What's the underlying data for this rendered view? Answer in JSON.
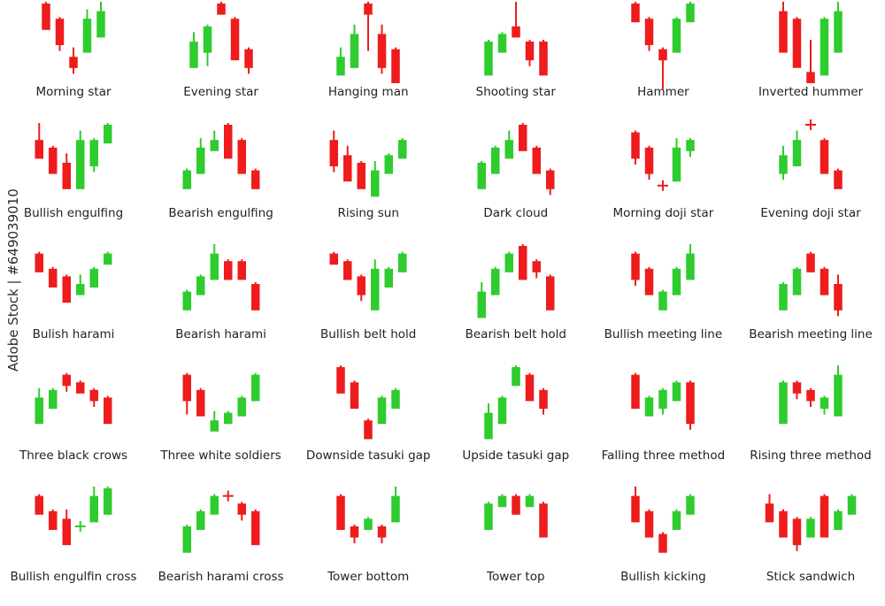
{
  "watermark": "Adobe Stock | #649039010",
  "colors": {
    "bull": "#2ecc2e",
    "bear": "#ee1c1c",
    "wick_bull": "#2ecc2e",
    "wick_bear": "#ee1c1c"
  },
  "patterns": [
    {
      "name": "Morning star",
      "candles": [
        [
          "r",
          0,
          3,
          0,
          3
        ],
        [
          "r",
          2,
          5,
          2,
          6
        ],
        [
          "r",
          7,
          8,
          6,
          9
        ],
        [
          "g",
          2,
          6,
          1,
          6
        ],
        [
          "g",
          1,
          4,
          0,
          4
        ]
      ]
    },
    {
      "name": "Evening star",
      "candles": [
        [
          "g",
          5,
          8,
          4,
          8
        ],
        [
          "g",
          3,
          6,
          3,
          8
        ],
        [
          "r",
          0,
          1,
          0,
          1
        ],
        [
          "r",
          2,
          7,
          2,
          7
        ],
        [
          "r",
          6,
          8,
          6,
          9
        ]
      ]
    },
    {
      "name": "Hanging man",
      "candles": [
        [
          "g",
          7,
          9,
          6,
          9
        ],
        [
          "g",
          4,
          8,
          3,
          8
        ],
        [
          "r",
          0,
          1,
          0,
          6
        ],
        [
          "r",
          4,
          8,
          3,
          9
        ],
        [
          "r",
          6,
          10,
          6,
          10
        ]
      ]
    },
    {
      "name": "Shooting star",
      "candles": [
        [
          "g",
          5,
          9,
          5,
          9
        ],
        [
          "g",
          4,
          6,
          4,
          6
        ],
        [
          "r",
          3,
          4,
          0,
          4
        ],
        [
          "r",
          5,
          7,
          5,
          8
        ],
        [
          "r",
          5,
          9,
          5,
          9
        ]
      ]
    },
    {
      "name": "Hammer",
      "candles": [
        [
          "r",
          0,
          2,
          0,
          2
        ],
        [
          "r",
          2,
          5,
          2,
          6
        ],
        [
          "r",
          6,
          7,
          6,
          11
        ],
        [
          "g",
          2,
          6,
          2,
          6
        ],
        [
          "g",
          0,
          2,
          0,
          2
        ]
      ]
    },
    {
      "name": "Inverted hummer",
      "candles": [
        [
          "r",
          1,
          6,
          0,
          6
        ],
        [
          "r",
          2,
          8,
          2,
          8
        ],
        [
          "r",
          9,
          10,
          5,
          10
        ],
        [
          "g",
          2,
          9,
          2,
          9
        ],
        [
          "g",
          1,
          6,
          0,
          6
        ]
      ]
    },
    {
      "name": "Bullish engulfing",
      "candles": [
        [
          "r",
          2,
          4,
          0,
          4
        ],
        [
          "r",
          3,
          6,
          3,
          6
        ],
        [
          "r",
          5,
          8,
          4,
          8
        ],
        [
          "g",
          2,
          8,
          1,
          8
        ],
        [
          "g",
          2,
          5,
          2,
          6
        ],
        [
          "g",
          0,
          2,
          0,
          2
        ]
      ]
    },
    {
      "name": "Bearish engulfing",
      "candles": [
        [
          "g",
          6,
          8,
          6,
          8
        ],
        [
          "g",
          3,
          6,
          2,
          6
        ],
        [
          "g",
          2,
          3,
          1,
          3
        ],
        [
          "r",
          0,
          4,
          0,
          4
        ],
        [
          "r",
          2,
          6,
          2,
          6
        ],
        [
          "r",
          6,
          8,
          6,
          8
        ]
      ]
    },
    {
      "name": "Rising sun",
      "candles": [
        [
          "r",
          2,
          5,
          1,
          6
        ],
        [
          "r",
          4,
          7,
          3,
          7
        ],
        [
          "r",
          5,
          8,
          5,
          8
        ],
        [
          "g",
          6,
          9,
          5,
          9
        ],
        [
          "g",
          4,
          6,
          4,
          6
        ],
        [
          "g",
          2,
          4,
          2,
          4
        ]
      ]
    },
    {
      "name": "Dark cloud",
      "candles": [
        [
          "g",
          5,
          8,
          5,
          8
        ],
        [
          "g",
          3,
          6,
          3,
          6
        ],
        [
          "g",
          2,
          4,
          1,
          4
        ],
        [
          "r",
          0,
          3,
          0,
          3
        ],
        [
          "r",
          3,
          6,
          3,
          6
        ],
        [
          "r",
          6,
          8,
          6,
          9
        ]
      ]
    },
    {
      "name": "Morning doji star",
      "candles": [
        [
          "r",
          1,
          4,
          1,
          5
        ],
        [
          "r",
          3,
          6,
          3,
          7
        ],
        [
          "x",
          8,
          8,
          7,
          9
        ],
        [
          "g",
          3,
          7,
          2,
          7
        ],
        [
          "g",
          2,
          3,
          2,
          4
        ]
      ]
    },
    {
      "name": "Evening doji star",
      "candles": [
        [
          "g",
          4,
          6,
          3,
          7
        ],
        [
          "g",
          2,
          5,
          1,
          5
        ],
        [
          "x",
          0,
          0,
          -1,
          1
        ],
        [
          "r",
          2,
          6,
          2,
          6
        ],
        [
          "r",
          6,
          8,
          6,
          8
        ]
      ]
    },
    {
      "name": "Bulish harami",
      "candles": [
        [
          "r",
          1,
          3,
          1,
          3
        ],
        [
          "r",
          3,
          5,
          3,
          5
        ],
        [
          "r",
          4,
          7,
          4,
          7
        ],
        [
          "g",
          5,
          6,
          4,
          6
        ],
        [
          "g",
          3,
          5,
          3,
          5
        ],
        [
          "g",
          1,
          2,
          1,
          2
        ]
      ]
    },
    {
      "name": "Bearish harami",
      "candles": [
        [
          "g",
          6,
          8,
          6,
          8
        ],
        [
          "g",
          4,
          6,
          4,
          6
        ],
        [
          "g",
          1,
          4,
          0,
          4
        ],
        [
          "r",
          2,
          4,
          2,
          4
        ],
        [
          "r",
          2,
          4,
          2,
          4
        ],
        [
          "r",
          5,
          8,
          5,
          8
        ]
      ]
    },
    {
      "name": "Bullish belt hold",
      "candles": [
        [
          "r",
          1,
          2,
          1,
          2
        ],
        [
          "r",
          2,
          4,
          2,
          4
        ],
        [
          "r",
          4,
          6,
          4,
          7
        ],
        [
          "g",
          3,
          8,
          2,
          8
        ],
        [
          "g",
          3,
          5,
          3,
          5
        ],
        [
          "g",
          1,
          3,
          1,
          3
        ]
      ]
    },
    {
      "name": "Bearish belt hold",
      "candles": [
        [
          "g",
          6,
          9,
          5,
          9
        ],
        [
          "g",
          3,
          6,
          3,
          6
        ],
        [
          "g",
          1,
          3,
          1,
          3
        ],
        [
          "r",
          0,
          4,
          0,
          4
        ],
        [
          "r",
          2,
          3,
          2,
          4
        ],
        [
          "r",
          4,
          8,
          4,
          8
        ]
      ]
    },
    {
      "name": "Bullish meeting line",
      "candles": [
        [
          "r",
          1,
          4,
          1,
          5
        ],
        [
          "r",
          3,
          6,
          3,
          6
        ],
        [
          "g",
          6,
          8,
          6,
          8
        ],
        [
          "g",
          3,
          6,
          3,
          6
        ],
        [
          "g",
          1,
          4,
          0,
          4
        ]
      ]
    },
    {
      "name": "Bearish meeting line",
      "candles": [
        [
          "g",
          5,
          8,
          5,
          8
        ],
        [
          "g",
          3,
          6,
          3,
          6
        ],
        [
          "r",
          1,
          3,
          1,
          3
        ],
        [
          "r",
          3,
          6,
          3,
          6
        ],
        [
          "r",
          5,
          8,
          4,
          9
        ]
      ]
    },
    {
      "name": "Three black crows",
      "candles": [
        [
          "g",
          4,
          7,
          3,
          7
        ],
        [
          "g",
          3,
          5,
          3,
          5
        ],
        [
          "r",
          1,
          2,
          1,
          3
        ],
        [
          "r",
          2,
          3,
          2,
          3
        ],
        [
          "r",
          3,
          4,
          3,
          5
        ],
        [
          "r",
          4,
          7,
          4,
          7
        ]
      ]
    },
    {
      "name": "Three white soldiers",
      "candles": [
        [
          "r",
          1,
          4,
          1,
          6
        ],
        [
          "r",
          3,
          6,
          3,
          6
        ],
        [
          "g",
          7,
          8,
          6,
          8
        ],
        [
          "g",
          6,
          7,
          6,
          7
        ],
        [
          "g",
          4,
          6,
          4,
          6
        ],
        [
          "g",
          1,
          4,
          1,
          4
        ]
      ]
    },
    {
      "name": "Downside tasuki gap",
      "candles": [
        [
          "r",
          0,
          3,
          0,
          3
        ],
        [
          "r",
          2,
          5,
          2,
          5
        ],
        [
          "r",
          7,
          9,
          7,
          9
        ],
        [
          "g",
          4,
          7,
          4,
          7
        ],
        [
          "g",
          3,
          5,
          3,
          5
        ]
      ]
    },
    {
      "name": "Upside tasuki gap",
      "candles": [
        [
          "g",
          6,
          9,
          5,
          9
        ],
        [
          "g",
          4,
          7,
          4,
          7
        ],
        [
          "g",
          0,
          2,
          0,
          2
        ],
        [
          "r",
          1,
          4,
          1,
          4
        ],
        [
          "r",
          3,
          5,
          3,
          6
        ]
      ]
    },
    {
      "name": "Falling three method",
      "candles": [
        [
          "r",
          1,
          5,
          1,
          5
        ],
        [
          "g",
          4,
          6,
          4,
          6
        ],
        [
          "g",
          3,
          5,
          3,
          6
        ],
        [
          "g",
          2,
          4,
          2,
          4
        ],
        [
          "r",
          2,
          7,
          2,
          8
        ]
      ]
    },
    {
      "name": "Rising three method",
      "candles": [
        [
          "g",
          2,
          7,
          2,
          7
        ],
        [
          "r",
          2,
          3,
          2,
          4
        ],
        [
          "r",
          3,
          4,
          3,
          5
        ],
        [
          "g",
          4,
          5,
          4,
          6
        ],
        [
          "g",
          1,
          6,
          0,
          6
        ]
      ]
    },
    {
      "name": "Bullish engulfin cross",
      "candles": [
        [
          "r",
          1,
          3,
          1,
          3
        ],
        [
          "r",
          3,
          5,
          3,
          5
        ],
        [
          "r",
          4,
          7,
          3,
          7
        ],
        [
          "x",
          5,
          5,
          4,
          6
        ],
        [
          "g",
          1,
          4,
          0,
          4
        ],
        [
          "g",
          0,
          3,
          0,
          3
        ]
      ]
    },
    {
      "name": "Bearish harami cross",
      "candles": [
        [
          "g",
          5,
          8,
          5,
          8
        ],
        [
          "g",
          3,
          5,
          3,
          5
        ],
        [
          "g",
          1,
          3,
          1,
          3
        ],
        [
          "x",
          1,
          1,
          0,
          2
        ],
        [
          "r",
          2,
          3,
          2,
          4
        ],
        [
          "r",
          3,
          7,
          3,
          7
        ]
      ]
    },
    {
      "name": "Tower bottom",
      "candles": [
        [
          "r",
          1,
          5,
          1,
          5
        ],
        [
          "r",
          5,
          6,
          5,
          7
        ],
        [
          "g",
          4,
          5,
          4,
          5
        ],
        [
          "r",
          5,
          6,
          5,
          7
        ],
        [
          "g",
          1,
          4,
          0,
          4
        ]
      ]
    },
    {
      "name": "Tower top",
      "candles": [
        [
          "g",
          2,
          5,
          2,
          5
        ],
        [
          "g",
          1,
          2,
          1,
          2
        ],
        [
          "r",
          1,
          3,
          1,
          3
        ],
        [
          "g",
          1,
          2,
          1,
          2
        ],
        [
          "r",
          2,
          6,
          2,
          6
        ]
      ]
    },
    {
      "name": "Bullish kicking",
      "candles": [
        [
          "r",
          1,
          4,
          0,
          4
        ],
        [
          "r",
          3,
          6,
          3,
          6
        ],
        [
          "r",
          6,
          8,
          6,
          8
        ],
        [
          "g",
          3,
          5,
          3,
          5
        ],
        [
          "g",
          1,
          3,
          1,
          3
        ]
      ]
    },
    {
      "name": "Stick sandwich",
      "candles": [
        [
          "r",
          2,
          4,
          1,
          4
        ],
        [
          "r",
          3,
          6,
          3,
          6
        ],
        [
          "r",
          4,
          7,
          4,
          8
        ],
        [
          "g",
          4,
          6,
          4,
          6
        ],
        [
          "r",
          1,
          6,
          1,
          6
        ],
        [
          "g",
          3,
          5,
          3,
          5
        ],
        [
          "g",
          1,
          3,
          1,
          3
        ]
      ]
    }
  ]
}
